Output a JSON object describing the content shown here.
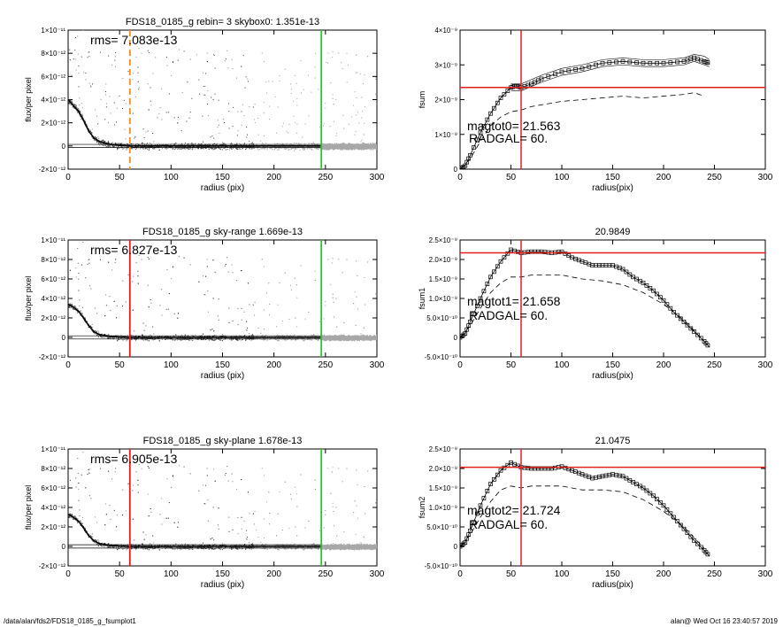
{
  "footer": {
    "path": "/data/alan/fds2/FDS18_0185_g_fsumplot1",
    "stamp": "alan@  Wed Oct 16 23:40:57 2019"
  },
  "chart_data": [
    {
      "type": "scatter",
      "title": "FDS18_0185_g rebin= 3    skybox0:  1.351e-13",
      "xlabel": "radius (pix)",
      "ylabel": "flux/per pixel",
      "xlim": [
        0,
        300
      ],
      "ylim": [
        -2e-12,
        1e-11
      ],
      "xticks": [
        0,
        50,
        100,
        150,
        200,
        250,
        300
      ],
      "yticks": [
        "1×10⁻¹¹",
        "8×10⁻¹²",
        "6×10⁻¹²",
        "4×10⁻¹²",
        "2×10⁻¹²",
        "0",
        "-2×10⁻¹²"
      ],
      "annotation": "rms= 7.083e-13",
      "vlines": [
        {
          "x": 60,
          "color": "#e8902a",
          "style": "dashed"
        },
        {
          "x": 246,
          "color": "#22cc22",
          "style": "solid"
        }
      ],
      "profile_x": [
        0,
        5,
        10,
        15,
        20,
        25,
        30,
        40,
        50,
        60,
        80,
        100,
        150,
        200,
        246
      ],
      "profile_y": [
        4e-12,
        3.5e-12,
        3e-12,
        2.2e-12,
        1.3e-12,
        7e-13,
        4e-13,
        1.5e-13,
        5e-14,
        0,
        0,
        0,
        0,
        0,
        0
      ],
      "sky_levels": [
        1.351e-13,
        -1.351e-13
      ],
      "grid": false
    },
    {
      "type": "line",
      "title": "",
      "xlabel": "radius(pix)",
      "ylabel": "fsum",
      "xlim": [
        0,
        300
      ],
      "ylim": [
        0,
        4e-09
      ],
      "xticks": [
        0,
        50,
        100,
        150,
        200,
        250,
        300
      ],
      "yticks": [
        "4×10⁻⁹",
        "3×10⁻⁹",
        "2×10⁻⁹",
        "1×10⁻⁹",
        "0"
      ],
      "annotations": [
        "magtot0=  21.563",
        "RADGAL=     60."
      ],
      "hline": 2.35e-09,
      "vline": 60,
      "series": [
        {
          "style": "squares",
          "x": [
            0,
            5,
            10,
            20,
            30,
            40,
            50,
            55,
            60,
            70,
            80,
            100,
            120,
            140,
            160,
            180,
            200,
            220,
            230,
            240,
            245
          ],
          "y": [
            0,
            1e-10,
            4e-10,
            1.05e-09,
            1.6e-09,
            2.05e-09,
            2.35e-09,
            2.4e-09,
            2.35e-09,
            2.45e-09,
            2.6e-09,
            2.8e-09,
            2.9e-09,
            3.05e-09,
            3.1e-09,
            3.05e-09,
            3.05e-09,
            3.1e-09,
            3.2e-09,
            3.1e-09,
            3.05e-09
          ]
        },
        {
          "style": "thin",
          "x": [
            50,
            60,
            80,
            100,
            120,
            140,
            160,
            180,
            200,
            220,
            230,
            240,
            245
          ],
          "y": [
            2.45e-09,
            2.45e-09,
            2.7e-09,
            2.9e-09,
            3e-09,
            3.15e-09,
            3.2e-09,
            3.15e-09,
            3.15e-09,
            3.2e-09,
            3.3e-09,
            3.25e-09,
            3.15e-09
          ]
        },
        {
          "style": "thin",
          "x": [
            50,
            60,
            80,
            100,
            120,
            140,
            160,
            180,
            200,
            220,
            230,
            240,
            245
          ],
          "y": [
            2.25e-09,
            2.25e-09,
            2.5e-09,
            2.7e-09,
            2.8e-09,
            2.95e-09,
            3e-09,
            2.95e-09,
            2.95e-09,
            3e-09,
            3.1e-09,
            3e-09,
            2.95e-09
          ]
        },
        {
          "style": "dashed",
          "x": [
            0,
            10,
            20,
            30,
            40,
            50,
            60,
            70,
            80,
            100,
            120,
            140,
            160,
            180,
            200,
            220,
            230,
            240
          ],
          "y": [
            0,
            3e-10,
            8e-10,
            1.25e-09,
            1.5e-09,
            1.65e-09,
            1.7e-09,
            1.8e-09,
            1.85e-09,
            1.95e-09,
            2e-09,
            2.05e-09,
            2.1e-09,
            2.05e-09,
            2.1e-09,
            2.15e-09,
            2.2e-09,
            2.1e-09
          ]
        }
      ]
    },
    {
      "type": "scatter",
      "title": "FDS18_0185_g sky-range  1.669e-13",
      "xlabel": "radius (pix)",
      "ylabel": "flux/per pixel",
      "xlim": [
        0,
        300
      ],
      "ylim": [
        -2e-12,
        1e-11
      ],
      "xticks": [
        0,
        50,
        100,
        150,
        200,
        250,
        300
      ],
      "yticks": [
        "1×10⁻¹¹",
        "8×10⁻¹²",
        "6×10⁻¹²",
        "4×10⁻¹²",
        "2×10⁻¹²",
        "0",
        "-2×10⁻¹²"
      ],
      "annotation": "rms= 6.827e-13",
      "vlines": [
        {
          "x": 60,
          "color": "#e02020",
          "style": "solid"
        },
        {
          "x": 246,
          "color": "#22cc22",
          "style": "solid"
        }
      ],
      "profile_x": [
        0,
        5,
        10,
        15,
        20,
        25,
        30,
        40,
        50,
        60,
        80,
        100,
        150,
        200,
        246
      ],
      "profile_y": [
        3.4e-12,
        3.1e-12,
        2.7e-12,
        2e-12,
        1.2e-12,
        6e-13,
        3e-13,
        1e-13,
        3e-14,
        0,
        0,
        0,
        0,
        0,
        0
      ],
      "sky_levels": [
        1.669e-13,
        -1.669e-13
      ],
      "grid": false
    },
    {
      "type": "line",
      "title": "20.9849",
      "xlabel": "radius(pix)",
      "ylabel": "fsum1",
      "xlim": [
        0,
        300
      ],
      "ylim": [
        -5e-10,
        2.5e-09
      ],
      "xticks": [
        0,
        50,
        100,
        150,
        200,
        250,
        300
      ],
      "yticks": [
        "2.5×10⁻⁹",
        "2.0×10⁻⁹",
        "1.5×10⁻⁹",
        "1.0×10⁻⁹",
        "5.0×10⁻¹⁰",
        "0",
        "-5.0×10⁻¹⁰"
      ],
      "annotations": [
        "magtot1=  21.658",
        "RADGAL=     60."
      ],
      "hline": 2.17e-09,
      "vline": 60,
      "series": [
        {
          "style": "squares",
          "x": [
            0,
            5,
            10,
            20,
            30,
            40,
            50,
            60,
            70,
            80,
            90,
            100,
            110,
            120,
            130,
            140,
            150,
            160,
            170,
            180,
            190,
            200,
            210,
            220,
            230,
            240,
            245
          ],
          "y": [
            0,
            1e-10,
            4e-10,
            1e-09,
            1.55e-09,
            1.95e-09,
            2.25e-09,
            2.17e-09,
            2.2e-09,
            2.2e-09,
            2.17e-09,
            2.2e-09,
            2.05e-09,
            1.95e-09,
            1.85e-09,
            1.85e-09,
            1.85e-09,
            1.75e-09,
            1.55e-09,
            1.4e-09,
            1.2e-09,
            9.5e-10,
            6.5e-10,
            4e-10,
            1.5e-10,
            -1e-10,
            -2.5e-10
          ]
        },
        {
          "style": "dashed",
          "x": [
            0,
            10,
            20,
            30,
            40,
            50,
            60,
            70,
            80,
            100,
            120,
            140,
            160,
            180,
            200,
            220,
            240
          ],
          "y": [
            0,
            3e-10,
            7.5e-10,
            1.15e-09,
            1.4e-09,
            1.55e-09,
            1.55e-09,
            1.6e-09,
            1.6e-09,
            1.6e-09,
            1.5e-09,
            1.45e-09,
            1.35e-09,
            1.15e-09,
            8.5e-10,
            4.5e-10,
            -1e-10
          ]
        }
      ]
    },
    {
      "type": "scatter",
      "title": "FDS18_0185_g sky-plane  1.678e-13",
      "xlabel": "radius (pix)",
      "ylabel": "flux/per pixel",
      "xlim": [
        0,
        300
      ],
      "ylim": [
        -2e-12,
        1e-11
      ],
      "xticks": [
        0,
        50,
        100,
        150,
        200,
        250,
        300
      ],
      "yticks": [
        "1×10⁻¹¹",
        "8×10⁻¹²",
        "6×10⁻¹²",
        "4×10⁻¹²",
        "2×10⁻¹²",
        "0",
        "-2×10⁻¹²"
      ],
      "annotation": "rms= 6.905e-13",
      "vlines": [
        {
          "x": 60,
          "color": "#e02020",
          "style": "solid"
        },
        {
          "x": 246,
          "color": "#22cc22",
          "style": "solid"
        }
      ],
      "profile_x": [
        0,
        5,
        10,
        15,
        20,
        25,
        30,
        40,
        50,
        60,
        80,
        100,
        150,
        200,
        246
      ],
      "profile_y": [
        3.3e-12,
        3e-12,
        2.6e-12,
        1.9e-12,
        1.1e-12,
        6e-13,
        3e-13,
        1e-13,
        3e-14,
        0,
        0,
        0,
        0,
        0,
        0
      ],
      "sky_levels": [
        1.678e-13,
        -1.678e-13
      ],
      "grid": false
    },
    {
      "type": "line",
      "title": "21.0475",
      "xlabel": "radius(pix)",
      "ylabel": "fsum2",
      "xlim": [
        0,
        300
      ],
      "ylim": [
        -5e-10,
        2.5e-09
      ],
      "xticks": [
        0,
        50,
        100,
        150,
        200,
        250,
        300
      ],
      "yticks": [
        "2.5×10⁻⁹",
        "2.0×10⁻⁹",
        "1.5×10⁻⁹",
        "1.0×10⁻⁹",
        "5.0×10⁻¹⁰",
        "0",
        "-5.0×10⁻¹⁰"
      ],
      "annotations": [
        "magtot2=  21.724",
        "RADGAL=     60."
      ],
      "hline": 2.03e-09,
      "vline": 60,
      "series": [
        {
          "style": "squares",
          "x": [
            0,
            5,
            10,
            20,
            30,
            40,
            50,
            60,
            70,
            80,
            90,
            100,
            110,
            120,
            130,
            140,
            150,
            160,
            170,
            180,
            190,
            200,
            210,
            220,
            230,
            240,
            245
          ],
          "y": [
            0,
            1e-10,
            4e-10,
            1.05e-09,
            1.6e-09,
            1.95e-09,
            2.15e-09,
            2.03e-09,
            2e-09,
            2e-09,
            2e-09,
            2.05e-09,
            1.95e-09,
            1.85e-09,
            1.75e-09,
            1.8e-09,
            1.85e-09,
            1.8e-09,
            1.65e-09,
            1.5e-09,
            1.3e-09,
            1.05e-09,
            7.5e-10,
            4.5e-10,
            1.5e-10,
            -1e-10,
            -2.5e-10
          ]
        },
        {
          "style": "dashed",
          "x": [
            0,
            10,
            20,
            30,
            40,
            50,
            60,
            70,
            80,
            100,
            120,
            140,
            160,
            180,
            200,
            220,
            240
          ],
          "y": [
            0,
            3e-10,
            7.5e-10,
            1.15e-09,
            1.45e-09,
            1.55e-09,
            1.5e-09,
            1.55e-09,
            1.55e-09,
            1.55e-09,
            1.45e-09,
            1.45e-09,
            1.4e-09,
            1.2e-09,
            9e-10,
            5e-10,
            -5e-11
          ]
        }
      ]
    }
  ]
}
